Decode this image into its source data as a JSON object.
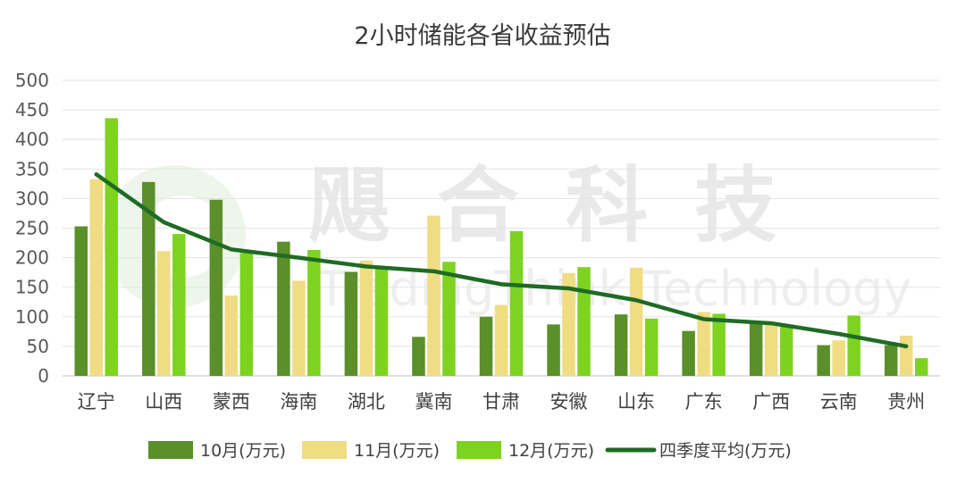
{
  "chart_data": {
    "type": "bar",
    "title": "2小时储能各省收益预估",
    "categories": [
      "辽宁",
      "山西",
      "蒙西",
      "海南",
      "湖北",
      "冀南",
      "甘肃",
      "安徽",
      "山东",
      "广东",
      "广西",
      "云南",
      "贵州"
    ],
    "series": [
      {
        "name": "10月(万元)",
        "type": "bar",
        "color": "#5a8f29",
        "values": [
          253,
          328,
          298,
          227,
          176,
          66,
          100,
          87,
          104,
          76,
          92,
          52,
          52
        ]
      },
      {
        "name": "11月(万元)",
        "type": "bar",
        "color": "#f0dc82",
        "values": [
          333,
          211,
          136,
          161,
          195,
          271,
          120,
          174,
          183,
          108,
          88,
          60,
          68
        ]
      },
      {
        "name": "12月(万元)",
        "type": "bar",
        "color": "#7ed321",
        "values": [
          436,
          240,
          208,
          213,
          184,
          193,
          245,
          184,
          97,
          105,
          86,
          102,
          30
        ]
      },
      {
        "name": "四季度平均(万元)",
        "type": "line",
        "color": "#1f6b24",
        "values": [
          341,
          260,
          214,
          200,
          185,
          177,
          155,
          148,
          128,
          96,
          89,
          71,
          50
        ]
      }
    ],
    "ylim": [
      0,
      500
    ],
    "yticks": [
      0,
      50,
      100,
      150,
      200,
      250,
      300,
      350,
      400,
      450,
      500
    ],
    "grid": true,
    "legend_position": "bottom"
  },
  "watermark": {
    "cn": "飓 合 科 技",
    "en": "TradingThink Technology"
  }
}
